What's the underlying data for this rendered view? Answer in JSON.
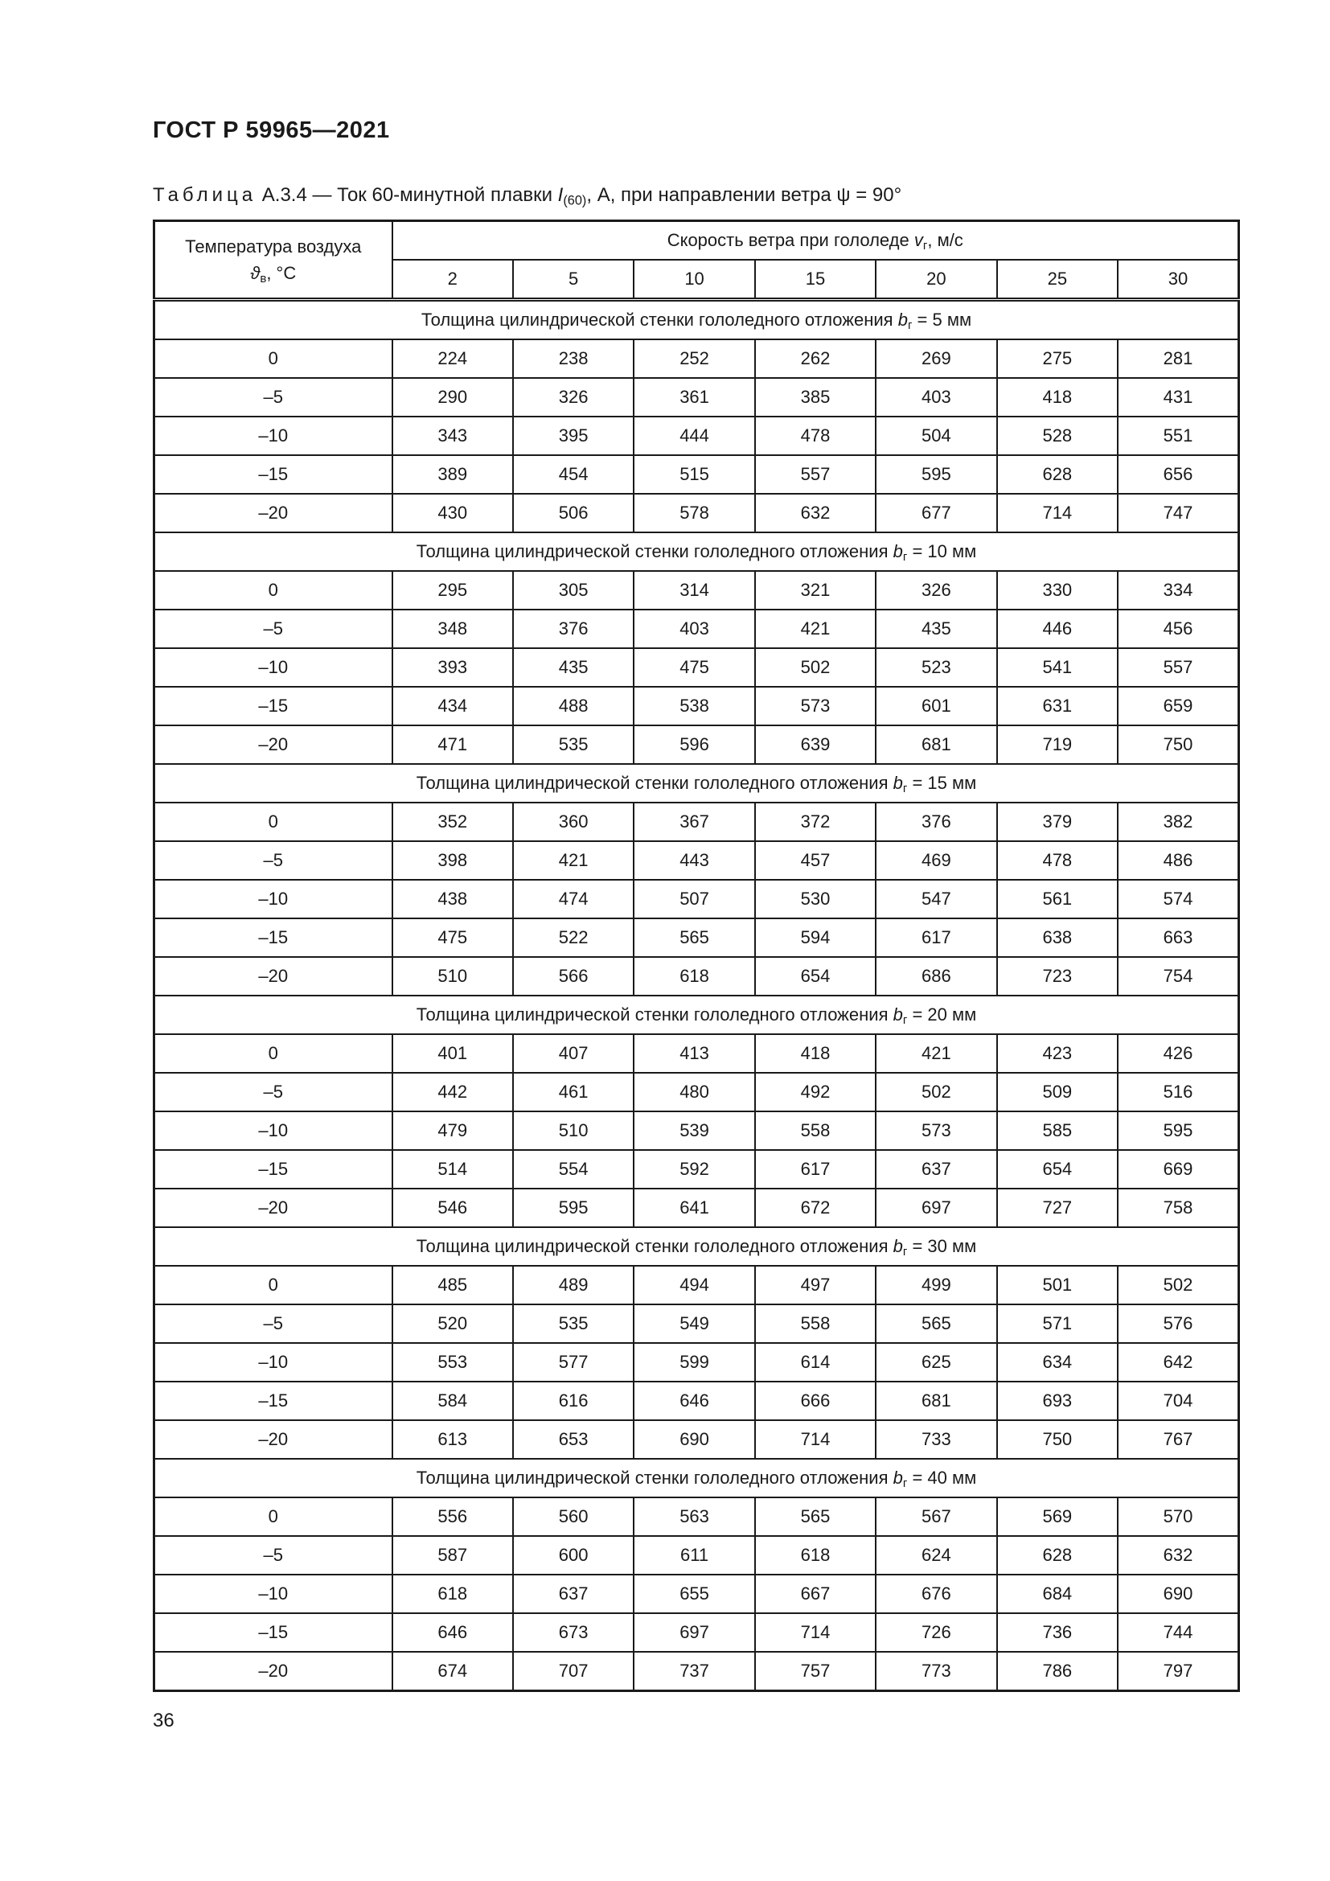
{
  "page": {
    "standard": "ГОСТ Р 59965—2021",
    "page_number": "36"
  },
  "caption": {
    "label": "Таблица",
    "number": "А.3.4",
    "dash": "—",
    "text_before": "Ток 60-минутной плавки",
    "symbol": "I",
    "symbol_sub": "(60)",
    "text_after": ", А, при направлении ветра ψ = 90°"
  },
  "table": {
    "temp_header": {
      "line1": "Температура воздуха",
      "symbol": "ϑ",
      "symbol_sub": "в",
      "unit": ", °С"
    },
    "speed_header": {
      "text": "Скорость ветра при гололеде",
      "symbol": "v",
      "symbol_sub": "г",
      "unit": ", м/с"
    },
    "speed_values": [
      "2",
      "5",
      "10",
      "15",
      "20",
      "25",
      "30"
    ],
    "section_header": {
      "prefix": "Толщина цилиндрической стенки гололедного отложения",
      "symbol": "b",
      "symbol_sub": "г"
    },
    "sections": [
      {
        "suffix": "= 5 мм",
        "rows": [
          {
            "temp": "0",
            "values": [
              224,
              238,
              252,
              262,
              269,
              275,
              281
            ]
          },
          {
            "temp": "–5",
            "values": [
              290,
              326,
              361,
              385,
              403,
              418,
              431
            ]
          },
          {
            "temp": "–10",
            "values": [
              343,
              395,
              444,
              478,
              504,
              528,
              551
            ]
          },
          {
            "temp": "–15",
            "values": [
              389,
              454,
              515,
              557,
              595,
              628,
              656
            ]
          },
          {
            "temp": "–20",
            "values": [
              430,
              506,
              578,
              632,
              677,
              714,
              747
            ]
          }
        ]
      },
      {
        "suffix": "= 10 мм",
        "rows": [
          {
            "temp": "0",
            "values": [
              295,
              305,
              314,
              321,
              326,
              330,
              334
            ]
          },
          {
            "temp": "–5",
            "values": [
              348,
              376,
              403,
              421,
              435,
              446,
              456
            ]
          },
          {
            "temp": "–10",
            "values": [
              393,
              435,
              475,
              502,
              523,
              541,
              557
            ]
          },
          {
            "temp": "–15",
            "values": [
              434,
              488,
              538,
              573,
              601,
              631,
              659
            ]
          },
          {
            "temp": "–20",
            "values": [
              471,
              535,
              596,
              639,
              681,
              719,
              750
            ]
          }
        ]
      },
      {
        "suffix": "= 15 мм",
        "rows": [
          {
            "temp": "0",
            "values": [
              352,
              360,
              367,
              372,
              376,
              379,
              382
            ]
          },
          {
            "temp": "–5",
            "values": [
              398,
              421,
              443,
              457,
              469,
              478,
              486
            ]
          },
          {
            "temp": "–10",
            "values": [
              438,
              474,
              507,
              530,
              547,
              561,
              574
            ]
          },
          {
            "temp": "–15",
            "values": [
              475,
              522,
              565,
              594,
              617,
              638,
              663
            ]
          },
          {
            "temp": "–20",
            "values": [
              510,
              566,
              618,
              654,
              686,
              723,
              754
            ]
          }
        ]
      },
      {
        "suffix": "= 20 мм",
        "rows": [
          {
            "temp": "0",
            "values": [
              401,
              407,
              413,
              418,
              421,
              423,
              426
            ]
          },
          {
            "temp": "–5",
            "values": [
              442,
              461,
              480,
              492,
              502,
              509,
              516
            ]
          },
          {
            "temp": "–10",
            "values": [
              479,
              510,
              539,
              558,
              573,
              585,
              595
            ]
          },
          {
            "temp": "–15",
            "values": [
              514,
              554,
              592,
              617,
              637,
              654,
              669
            ]
          },
          {
            "temp": "–20",
            "values": [
              546,
              595,
              641,
              672,
              697,
              727,
              758
            ]
          }
        ]
      },
      {
        "suffix": "= 30 мм",
        "rows": [
          {
            "temp": "0",
            "values": [
              485,
              489,
              494,
              497,
              499,
              501,
              502
            ]
          },
          {
            "temp": "–5",
            "values": [
              520,
              535,
              549,
              558,
              565,
              571,
              576
            ]
          },
          {
            "temp": "–10",
            "values": [
              553,
              577,
              599,
              614,
              625,
              634,
              642
            ]
          },
          {
            "temp": "–15",
            "values": [
              584,
              616,
              646,
              666,
              681,
              693,
              704
            ]
          },
          {
            "temp": "–20",
            "values": [
              613,
              653,
              690,
              714,
              733,
              750,
              767
            ]
          }
        ]
      },
      {
        "suffix": "= 40 мм",
        "rows": [
          {
            "temp": "0",
            "values": [
              556,
              560,
              563,
              565,
              567,
              569,
              570
            ]
          },
          {
            "temp": "–5",
            "values": [
              587,
              600,
              611,
              618,
              624,
              628,
              632
            ]
          },
          {
            "temp": "–10",
            "values": [
              618,
              637,
              655,
              667,
              676,
              684,
              690
            ]
          },
          {
            "temp": "–15",
            "values": [
              646,
              673,
              697,
              714,
              726,
              736,
              744
            ]
          },
          {
            "temp": "–20",
            "values": [
              674,
              707,
              737,
              757,
              773,
              786,
              797
            ]
          }
        ]
      }
    ]
  }
}
